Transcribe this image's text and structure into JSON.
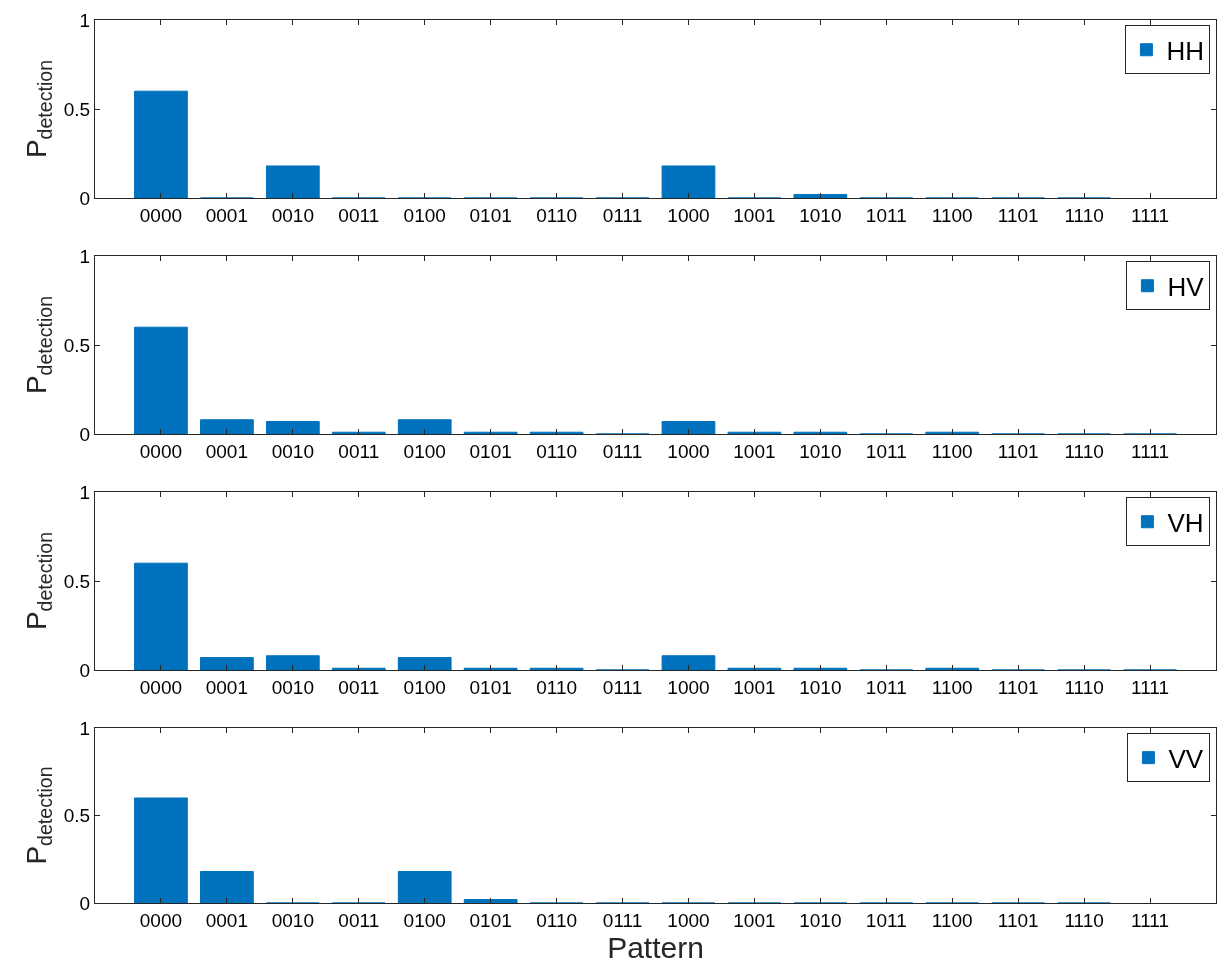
{
  "chart_data": [
    {
      "type": "bar",
      "ylabel": "P$_{detection}$",
      "categories": [
        "0000",
        "0001",
        "0010",
        "0011",
        "0100",
        "0101",
        "0110",
        "0111",
        "1000",
        "1001",
        "1010",
        "1011",
        "1100",
        "1101",
        "1110",
        "1111"
      ],
      "series": [
        {
          "name": "HH",
          "color": "#0072bd",
          "values": [
            0.6,
            0,
            0.18,
            0,
            0,
            0,
            0,
            0,
            0.18,
            0,
            0.02,
            0,
            0,
            0,
            0,
            null
          ]
        }
      ],
      "ylim": [
        0,
        1
      ],
      "yticks": [
        0,
        0.5,
        1
      ],
      "legend": "top right",
      "grid": false
    },
    {
      "type": "bar",
      "ylabel": "P$_{detection}$",
      "categories": [
        "0000",
        "0001",
        "0010",
        "0011",
        "0100",
        "0101",
        "0110",
        "0111",
        "1000",
        "1001",
        "1010",
        "1011",
        "1100",
        "1101",
        "1110",
        "1111"
      ],
      "series": [
        {
          "name": "HV",
          "color": "#0072bd",
          "values": [
            0.6,
            0.08,
            0.07,
            0.01,
            0.08,
            0.01,
            0.01,
            0,
            0.07,
            0.01,
            0.01,
            0,
            0.01,
            0,
            0,
            0
          ]
        }
      ],
      "ylim": [
        0,
        1
      ],
      "yticks": [
        0,
        0.5,
        1
      ],
      "legend": "top right",
      "grid": false
    },
    {
      "type": "bar",
      "ylabel": "P$_{detection}$",
      "categories": [
        "0000",
        "0001",
        "0010",
        "0011",
        "0100",
        "0101",
        "0110",
        "0111",
        "1000",
        "1001",
        "1010",
        "1011",
        "1100",
        "1101",
        "1110",
        "1111"
      ],
      "series": [
        {
          "name": "VH",
          "color": "#0072bd",
          "values": [
            0.6,
            0.07,
            0.08,
            0.01,
            0.07,
            0.01,
            0.01,
            0,
            0.08,
            0.01,
            0.01,
            0,
            0.01,
            0,
            0,
            0
          ]
        }
      ],
      "ylim": [
        0,
        1
      ],
      "yticks": [
        0,
        0.5,
        1
      ],
      "legend": "top right",
      "grid": false
    },
    {
      "type": "bar",
      "ylabel": "P$_{detection}$",
      "xlabel": "Pattern",
      "categories": [
        "0000",
        "0001",
        "0010",
        "0011",
        "0100",
        "0101",
        "0110",
        "0111",
        "1000",
        "1001",
        "1010",
        "1011",
        "1100",
        "1101",
        "1110",
        "1111"
      ],
      "series": [
        {
          "name": "VV",
          "color": "#0072bd",
          "values": [
            0.6,
            0.18,
            0,
            0,
            0.18,
            0.02,
            0,
            0,
            0,
            0,
            0,
            0,
            0,
            0,
            0,
            null
          ]
        }
      ],
      "ylim": [
        0,
        1
      ],
      "yticks": [
        0,
        0.5,
        1
      ],
      "legend": "top right",
      "grid": false
    }
  ]
}
